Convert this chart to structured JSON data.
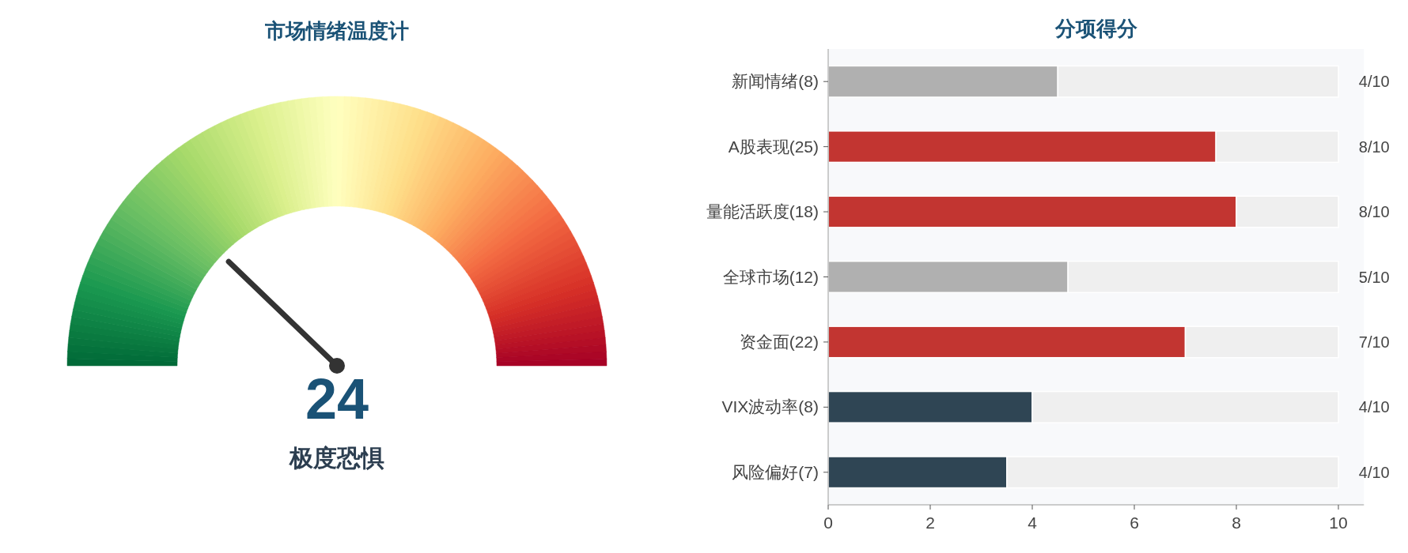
{
  "chart_data": [
    {
      "type": "other",
      "title": "市场情绪温度计",
      "annotations": [
        "24"
      ],
      "categories": [
        "极度恐惧"
      ]
    },
    {
      "type": "bar",
      "orientation": "horizontal",
      "stacked": true,
      "title": "分项得分",
      "categories": [
        "新闻情绪(8)",
        "A股表现(25)",
        "量能活跃度(18)",
        "全球市场(12)",
        "资金面(22)",
        "VIX波动率(8)",
        "风险偏好(7)"
      ],
      "series": [
        {
          "colors": [
            "#b0b0b0",
            "#c23531",
            "#c23531",
            "#b0b0b0",
            "#c23531",
            "#2f4554",
            "#2f4554"
          ],
          "values": [
            4.5,
            7.6,
            8.0,
            4.7,
            7.0,
            4.0,
            3.5
          ]
        },
        {
          "color": "#efefef",
          "values": [
            5.5,
            2.4,
            2.0,
            5.3,
            3.0,
            6.0,
            6.5
          ]
        }
      ],
      "annotations": [
        "4/10",
        "8/10",
        "8/10",
        "5/10",
        "7/10",
        "4/10",
        "4/10"
      ],
      "xlim": [
        0,
        10.5
      ],
      "xticks": [
        0,
        2,
        4,
        6,
        8,
        10
      ],
      "grid": false
    }
  ]
}
